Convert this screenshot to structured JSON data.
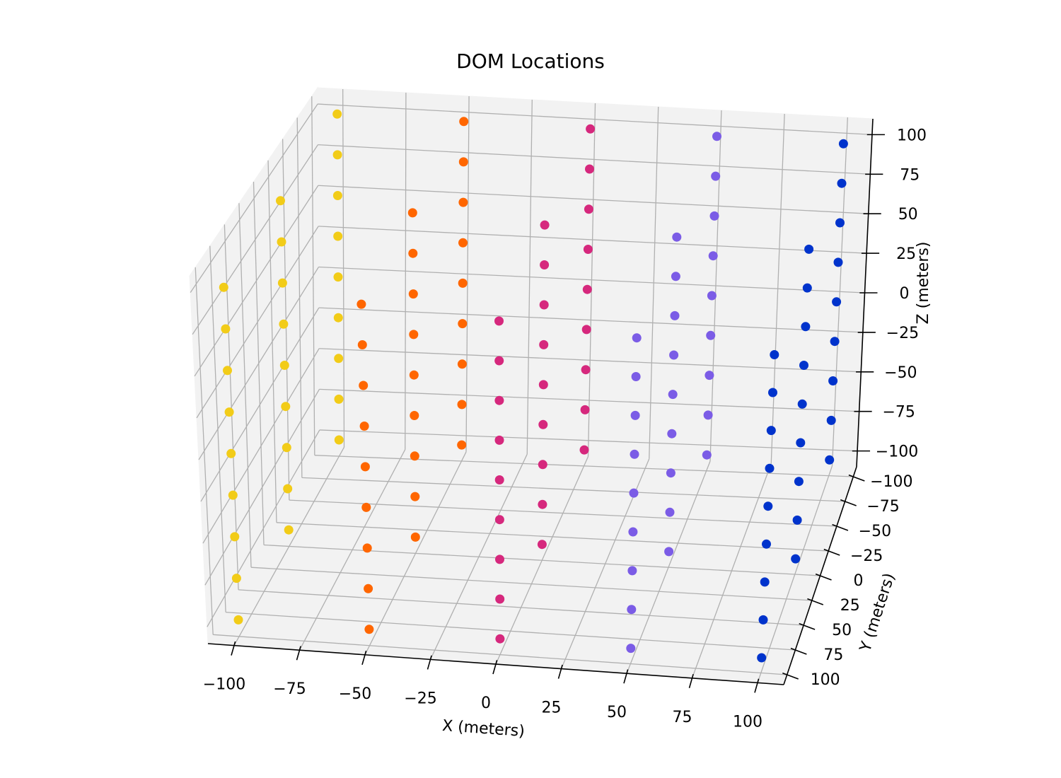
{
  "chart_data": {
    "type": "scatter3d",
    "title": "DOM Locations",
    "xlabel": "X (meters)",
    "ylabel": "Y (meters)",
    "zlabel": "Z (meters)",
    "xlim": [
      -110,
      110
    ],
    "ylim": [
      -110,
      110
    ],
    "zlim": [
      -110,
      110
    ],
    "xticks": [
      100,
      75,
      50,
      25,
      0,
      -25,
      -50,
      -75,
      -100
    ],
    "yticks": [
      -100,
      -75,
      -50,
      -25,
      0,
      25,
      50,
      75,
      100
    ],
    "zticks": [
      100,
      75,
      50,
      25,
      0,
      -25,
      -50,
      -75,
      -100
    ],
    "xtick_labels": [
      "100",
      "75",
      "50",
      "25",
      "0",
      "−25",
      "−50",
      "−75",
      "−100"
    ],
    "ytick_labels": [
      "−100",
      "−75",
      "−50",
      "−25",
      "0",
      "25",
      "50",
      "75",
      "100"
    ],
    "ztick_labels": [
      "100",
      "75",
      "50",
      "25",
      "0",
      "−25",
      "−50",
      "−75",
      "−100"
    ],
    "grid": true,
    "series": [
      {
        "color": "#0033cc",
        "x": 100,
        "y_values": [
          -100,
          0,
          100
        ],
        "z_values": [
          100,
          75,
          50,
          25,
          0,
          -25,
          -50,
          -75,
          -100
        ]
      },
      {
        "color": "#7b5ce6",
        "x": 50,
        "y_values": [
          -100,
          0,
          100
        ],
        "z_values": [
          100,
          75,
          50,
          25,
          0,
          -25,
          -50,
          -75,
          -100
        ]
      },
      {
        "color": "#d6287d",
        "x": 0,
        "y_values": [
          -100,
          0,
          100
        ],
        "z_values": [
          100,
          75,
          50,
          25,
          0,
          -25,
          -50,
          -75,
          -100
        ]
      },
      {
        "color": "#ff6600",
        "x": -50,
        "y_values": [
          -100,
          0,
          100
        ],
        "z_values": [
          100,
          75,
          50,
          25,
          0,
          -25,
          -50,
          -75,
          -100
        ]
      },
      {
        "color": "#f2cc18",
        "x": -100,
        "y_values": [
          -100,
          0,
          100
        ],
        "z_values": [
          100,
          75,
          50,
          25,
          0,
          -25,
          -50,
          -75,
          -100
        ]
      }
    ]
  }
}
